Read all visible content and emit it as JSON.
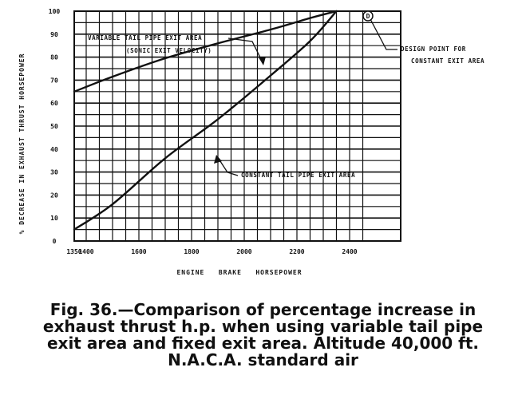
{
  "chart_data": {
    "type": "line",
    "xlabel": "ENGINE   BRAKE   HORSEPOWER",
    "ylabel": "% DECREASE IN EXHAUST THRUST HORSEPOWER",
    "xlim": [
      1350,
      2450
    ],
    "ylim": [
      0,
      100
    ],
    "x_ticks": [
      "1350",
      "1400",
      "1500",
      "1600",
      "1700",
      "1800",
      "1900",
      "2000",
      "2100",
      "2200",
      "2300",
      "2400"
    ],
    "x_tick_labels": [
      "1350",
      "1400",
      "1600",
      "1800",
      "2000",
      "2200",
      "2400"
    ],
    "y_ticks": [
      0,
      10,
      20,
      30,
      40,
      50,
      60,
      70,
      80,
      90,
      100
    ],
    "y_tick_labels": [
      "0",
      "10",
      "20",
      "30",
      "40",
      "50",
      "60",
      "70",
      "80",
      "90",
      "100"
    ],
    "grid": true,
    "series": [
      {
        "name": "VARIABLE TAIL PIPE EXIT AREA (SONIC EXIT VELOCITY)",
        "x": [
          1350,
          1500,
          1700,
          1900,
          2100,
          2250,
          2350
        ],
        "y": [
          65,
          71.5,
          79.5,
          86,
          92,
          97,
          100
        ]
      },
      {
        "name": "CONSTANT TAIL PIPE EXIT AREA",
        "x": [
          1350,
          1500,
          1700,
          1900,
          2100,
          2250,
          2350
        ],
        "y": [
          5,
          16,
          36,
          53,
          72,
          87,
          100
        ]
      }
    ],
    "annotations": {
      "design_point_label_1": "DESIGN POINT FOR",
      "design_point_label_2": "CONSTANT EXIT AREA",
      "design_point_marker": "D",
      "variable_label_1": "VARIABLE TAIL PIPE EXIT AREA",
      "variable_label_2": "(SONIC EXIT VELOCITY)",
      "constant_label": "CONSTANT TAIL PIPE EXIT AREA"
    }
  },
  "caption": {
    "line1": "Fig. 36.—Comparison of percentage increase in",
    "line2": "exhaust thrust h.p. when using variable tail pipe",
    "line3": "exit area and fixed exit area. Altitude 40,000 ft.",
    "line4": "N.A.C.A. standard air"
  }
}
